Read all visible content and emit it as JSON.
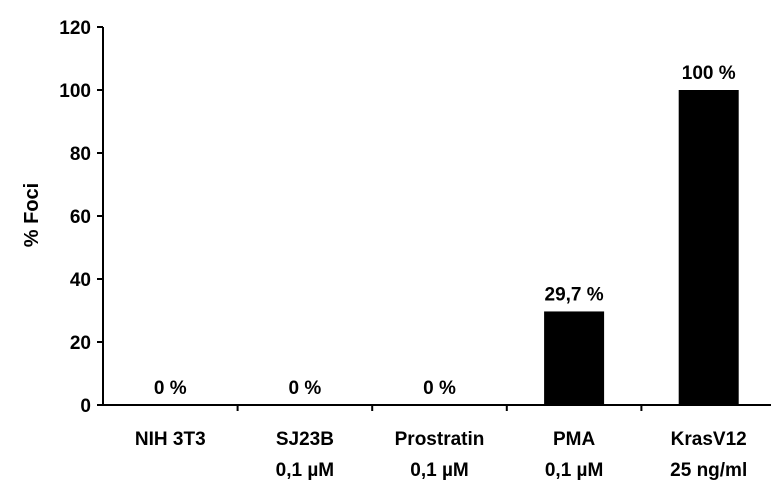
{
  "chart_data": {
    "type": "bar",
    "title": "",
    "xlabel": "",
    "ylabel": "% Foci",
    "ylim": [
      0,
      120
    ],
    "yticks": [
      0,
      20,
      40,
      60,
      80,
      100,
      120
    ],
    "grid": false,
    "legend": "none",
    "bar_color": "#000000",
    "categories": [
      [
        "NIH 3T3"
      ],
      [
        "SJ23B",
        "0,1 µM"
      ],
      [
        "Prostratin",
        "0,1 µM"
      ],
      [
        "PMA",
        "0,1 µM"
      ],
      [
        "KrasV12",
        "25 ng/ml"
      ]
    ],
    "values": [
      0,
      0,
      0,
      29.7,
      100
    ],
    "data_labels": [
      "0 %",
      "0 %",
      "0 %",
      "29,7 %",
      "100 %"
    ]
  }
}
